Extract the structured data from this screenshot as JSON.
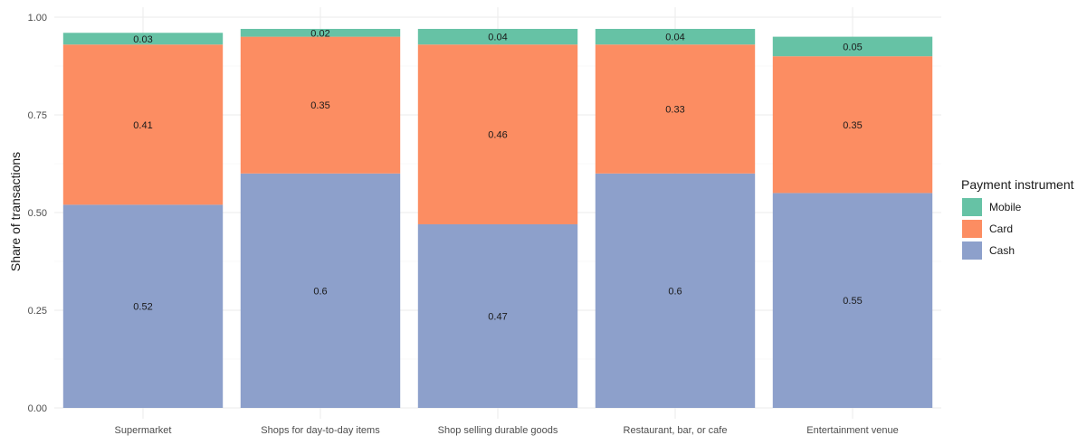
{
  "chart_data": {
    "type": "bar",
    "stacked": true,
    "title": "",
    "xlabel": "",
    "ylabel": "Share of transactions",
    "ylim": [
      0,
      1
    ],
    "yticks": [
      "0.00",
      "0.25",
      "0.50",
      "0.75",
      "1.00"
    ],
    "ytick_values": [
      0,
      0.25,
      0.5,
      0.75,
      1.0
    ],
    "grid": true,
    "legend": {
      "title": "Payment instrument",
      "position": "right",
      "order": [
        "Mobile",
        "Card",
        "Cash"
      ]
    },
    "categories": [
      "Supermarket",
      "Shops for day-to-day items",
      "Shop selling durable goods",
      "Restaurant, bar, or cafe",
      "Entertainment venue"
    ],
    "series": [
      {
        "name": "Cash",
        "color": "#8da0cb",
        "values": [
          0.52,
          0.6,
          0.47,
          0.6,
          0.55
        ],
        "labels": [
          "0.52",
          "0.6",
          "0.47",
          "0.6",
          "0.55"
        ]
      },
      {
        "name": "Card",
        "color": "#fc8d62",
        "values": [
          0.41,
          0.35,
          0.46,
          0.33,
          0.35
        ],
        "labels": [
          "0.41",
          "0.35",
          "0.46",
          "0.33",
          "0.35"
        ]
      },
      {
        "name": "Mobile",
        "color": "#66c2a5",
        "values": [
          0.03,
          0.02,
          0.04,
          0.04,
          0.05
        ],
        "labels": [
          "0.03",
          "0.02",
          "0.04",
          "0.04",
          "0.05"
        ]
      }
    ]
  }
}
